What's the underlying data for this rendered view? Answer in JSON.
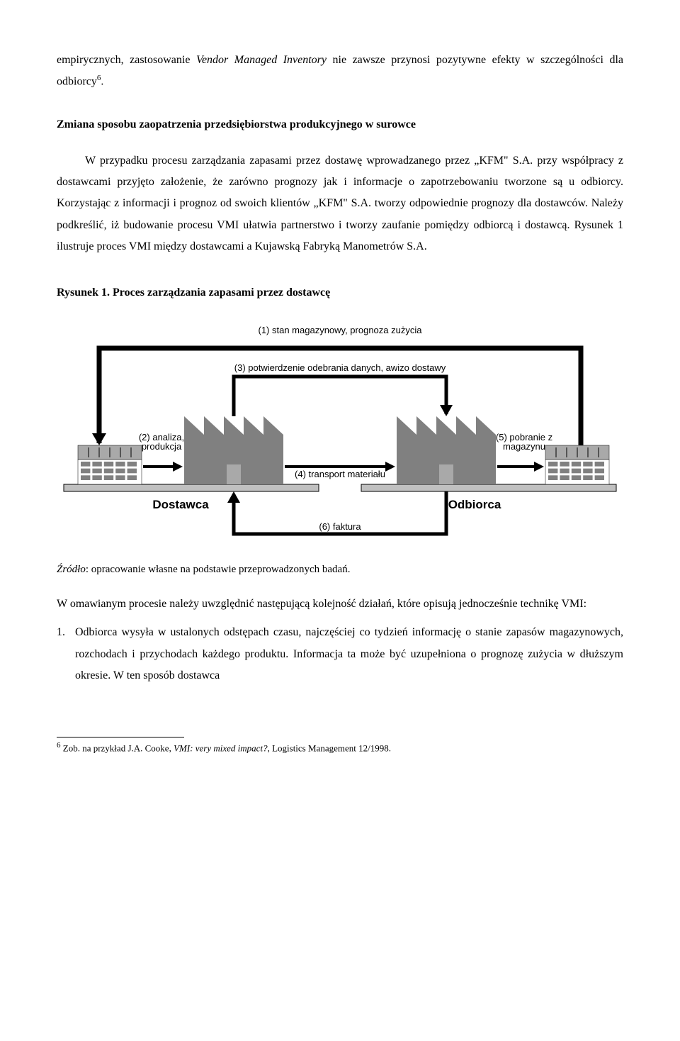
{
  "para1_a": "empirycznych, zastosowanie ",
  "para1_em": "Vendor Managed Inventory",
  "para1_b": " nie zawsze przynosi pozytywne efekty w szczególności dla odbiorcy",
  "para1_sup": "6",
  "para1_c": ".",
  "heading1": "Zmiana sposobu zaopatrzenia przedsiębiorstwa produkcyjnego w surowce",
  "para2": "W przypadku procesu zarządzania zapasami przez dostawę wprowadzanego przez „KFM\" S.A. przy współpracy z dostawcami przyjęto założenie, że zarówno prognozy jak i informacje o zapotrzebowaniu tworzone są u odbiorcy. Korzystając z informacji i prognoz od swoich klientów „KFM\" S.A. tworzy odpowiednie prognozy dla dostawców. Należy podkreślić, iż budowanie procesu VMI ułatwia partnerstwo i tworzy zaufanie pomiędzy odbiorcą i dostawcą. Rysunek 1 ilustruje proces VMI między dostawcami a Kujawską Fabryką Manometrów S.A.",
  "figure_title": "Rysunek 1. Proces zarządzania zapasami przez dostawcę",
  "figure": {
    "label_top": "(1) stan magazynowy, prognoza zużycia",
    "label_inner": "(3) potwierdzenie odebrania danych, awizo dostawy",
    "label_left": "(2) analiza,\nprodukcja",
    "label_mid": "(4) transport materiału",
    "label_right": "(5) pobranie z\nmagazynu",
    "label_bottom": "(6) faktura",
    "label_supplier": "Dostawca",
    "label_receiver": "Odbiorca",
    "colors": {
      "dark": "#808080",
      "mid": "#a9a9a9",
      "light": "#c0c0c0",
      "line": "#000000",
      "bg": "#ffffff"
    },
    "line_width_inner": 5,
    "line_width_outer": 7,
    "font_size_label": 13,
    "font_size_big": 17
  },
  "figure_source_a": "Źródło",
  "figure_source_b": ": opracowanie własne na podstawie przeprowadzonych badań.",
  "para3": "W omawianym procesie należy uwzględnić następującą kolejność działań, które opisują jednocześnie technikę VMI:",
  "list1_num": "1.",
  "list1_text": "Odbiorca wysyła w ustalonych odstępach czasu, najczęściej co tydzień informację o stanie zapasów magazynowych, rozchodach i przychodach każdego produktu. Informacja ta może być uzupełniona o prognozę zużycia w dłuższym okresie. W ten sposób dostawca",
  "footnote_sup": "6",
  "footnote_a": " Zob. na przykład J.A. Cooke, ",
  "footnote_em": "VMI: very mixed impact?,",
  "footnote_b": " Logistics Management 12/1998."
}
